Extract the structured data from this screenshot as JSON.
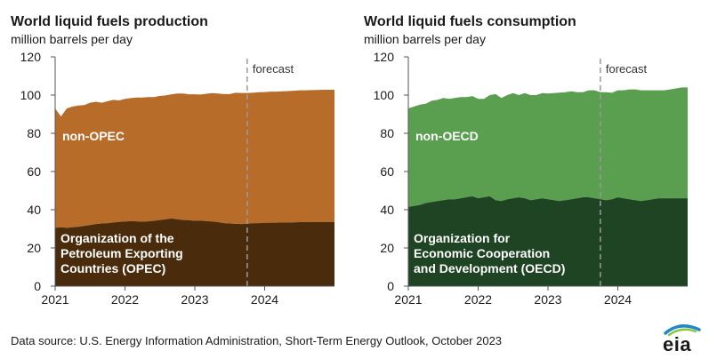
{
  "footer": {
    "source_text": "Data source: U.S. Energy Information Administration, Short-Term Energy Outlook, October 2023",
    "logo_text": "eia"
  },
  "chart_data": [
    {
      "type": "area",
      "stacked": true,
      "title": "World liquid fuels production",
      "subtitle": "million barrels per day",
      "ylim": [
        0,
        120
      ],
      "y_ticks": [
        0,
        20,
        40,
        60,
        80,
        100,
        120
      ],
      "xlim": [
        2021.0,
        2025.0
      ],
      "x_ticks": [
        {
          "value": 2021,
          "label": "2021"
        },
        {
          "value": 2022,
          "label": "2022"
        },
        {
          "value": 2023,
          "label": "2023"
        },
        {
          "value": 2024,
          "label": "2024"
        }
      ],
      "grid": false,
      "forecast": {
        "x": 2023.75,
        "label": "forecast"
      },
      "colors": {
        "bottom": "#4a2c0c",
        "top": "#b86c29"
      },
      "x": [
        2021.0,
        2021.083,
        2021.167,
        2021.25,
        2021.333,
        2021.417,
        2021.5,
        2021.583,
        2021.667,
        2021.75,
        2021.833,
        2021.917,
        2022.0,
        2022.083,
        2022.167,
        2022.25,
        2022.333,
        2022.417,
        2022.5,
        2022.583,
        2022.667,
        2022.75,
        2022.833,
        2022.917,
        2023.0,
        2023.083,
        2023.167,
        2023.25,
        2023.333,
        2023.417,
        2023.5,
        2023.583,
        2023.667,
        2023.75,
        2023.833,
        2023.917,
        2024.0,
        2024.083,
        2024.167,
        2024.25,
        2024.333,
        2024.417,
        2024.5,
        2024.583,
        2024.667,
        2024.75,
        2024.833,
        2024.917
      ],
      "series": [
        {
          "name": "Organization of the Petroleum Exporting Countries (OPEC)",
          "label_lines": [
            "Organization of the",
            "Petroleum Exporting",
            "Countries (OPEC)"
          ],
          "values": [
            30.5,
            30.8,
            30.5,
            30.8,
            31.0,
            31.5,
            32.0,
            32.5,
            32.8,
            33.0,
            33.3,
            33.6,
            33.8,
            34.0,
            33.9,
            33.7,
            33.9,
            34.2,
            34.6,
            35.0,
            35.4,
            35.0,
            34.6,
            34.5,
            34.2,
            34.3,
            34.0,
            33.8,
            33.5,
            33.0,
            32.8,
            32.6,
            32.5,
            32.7,
            33.0,
            33.0,
            33.1,
            33.2,
            33.2,
            33.3,
            33.3,
            33.4,
            33.5,
            33.5,
            33.5,
            33.6,
            33.6,
            33.6
          ]
        },
        {
          "name": "non-OPEC",
          "label_lines": [
            "non-OPEC"
          ],
          "values": [
            62.5,
            58.0,
            62.5,
            63.2,
            63.5,
            63.3,
            64.0,
            64.0,
            63.2,
            63.8,
            64.2,
            63.6,
            64.2,
            64.4,
            64.8,
            65.0,
            65.1,
            64.8,
            65.0,
            64.8,
            65.0,
            65.8,
            66.2,
            65.9,
            66.2,
            66.0,
            66.7,
            67.2,
            67.3,
            67.5,
            67.7,
            68.6,
            68.6,
            68.4,
            68.2,
            68.5,
            68.5,
            68.6,
            68.6,
            68.7,
            68.8,
            68.9,
            69.0,
            69.0,
            69.1,
            69.1,
            69.2,
            69.2
          ]
        }
      ]
    },
    {
      "type": "area",
      "stacked": true,
      "title": "World liquid fuels consumption",
      "subtitle": "million barrels per day",
      "ylim": [
        0,
        120
      ],
      "y_ticks": [
        0,
        20,
        40,
        60,
        80,
        100,
        120
      ],
      "xlim": [
        2021.0,
        2025.0
      ],
      "x_ticks": [
        {
          "value": 2021,
          "label": "2021"
        },
        {
          "value": 2022,
          "label": "2022"
        },
        {
          "value": 2023,
          "label": "2023"
        },
        {
          "value": 2024,
          "label": "2024"
        }
      ],
      "grid": false,
      "forecast": {
        "x": 2023.75,
        "label": "forecast"
      },
      "colors": {
        "bottom": "#1f4423",
        "top": "#5a9e4f"
      },
      "x": [
        2021.0,
        2021.083,
        2021.167,
        2021.25,
        2021.333,
        2021.417,
        2021.5,
        2021.583,
        2021.667,
        2021.75,
        2021.833,
        2021.917,
        2022.0,
        2022.083,
        2022.167,
        2022.25,
        2022.333,
        2022.417,
        2022.5,
        2022.583,
        2022.667,
        2022.75,
        2022.833,
        2022.917,
        2023.0,
        2023.083,
        2023.167,
        2023.25,
        2023.333,
        2023.417,
        2023.5,
        2023.583,
        2023.667,
        2023.75,
        2023.833,
        2023.917,
        2024.0,
        2024.083,
        2024.167,
        2024.25,
        2024.333,
        2024.417,
        2024.5,
        2024.583,
        2024.667,
        2024.75,
        2024.833,
        2024.917
      ],
      "series": [
        {
          "name": "Organization for Economic Cooperation and Development (OECD)",
          "label_lines": [
            "Organization for",
            "Economic Cooperation",
            "and Development (OECD)"
          ],
          "values": [
            41.5,
            42.0,
            42.5,
            43.5,
            44.0,
            44.5,
            45.0,
            45.5,
            45.5,
            46.0,
            46.5,
            47.0,
            46.0,
            46.5,
            47.0,
            45.0,
            44.5,
            45.5,
            46.0,
            46.5,
            46.0,
            45.0,
            45.5,
            46.0,
            45.5,
            45.0,
            44.5,
            45.0,
            45.5,
            46.0,
            46.5,
            46.5,
            46.0,
            45.5,
            45.0,
            45.5,
            46.5,
            46.0,
            45.5,
            45.0,
            44.5,
            45.0,
            45.5,
            46.0,
            46.0,
            46.0,
            46.0,
            46.0
          ]
        },
        {
          "name": "non-OECD",
          "label_lines": [
            "non-OECD"
          ],
          "values": [
            51.5,
            52.0,
            52.5,
            52.0,
            53.0,
            53.0,
            53.5,
            52.5,
            53.0,
            53.0,
            52.5,
            52.5,
            52.0,
            51.5,
            53.0,
            55.5,
            54.0,
            54.5,
            55.0,
            53.5,
            55.0,
            55.0,
            54.5,
            55.0,
            55.3,
            56.0,
            56.8,
            56.5,
            56.5,
            55.5,
            55.0,
            56.0,
            56.5,
            56.0,
            56.5,
            55.7,
            56.0,
            56.5,
            57.5,
            58.0,
            58.0,
            57.5,
            57.0,
            56.5,
            56.5,
            57.0,
            57.5,
            58.0
          ]
        }
      ]
    }
  ]
}
